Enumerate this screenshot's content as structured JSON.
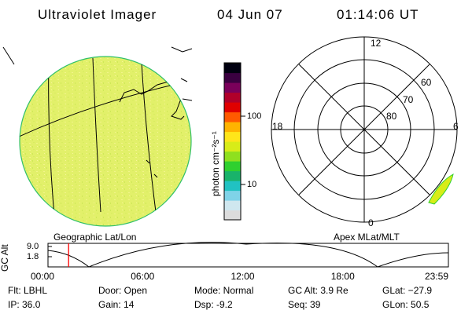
{
  "header": {
    "title": "Ultraviolet Imager",
    "date": "04 Jun 07",
    "time": "01:14:06 UT"
  },
  "colorbar": {
    "unit_label": "photon cm⁻²s⁻¹",
    "tick_100": "100",
    "tick_10": "10",
    "colors": [
      "#dcdcdc",
      "#cfe7ef",
      "#7fd3e8",
      "#21c2c2",
      "#19b36a",
      "#2fd02f",
      "#8fe01f",
      "#d8ec18",
      "#ffe51a",
      "#ffb300",
      "#ff5a00",
      "#e00000",
      "#b0002a",
      "#7a005a",
      "#3a0040",
      "#000010"
    ]
  },
  "left_panel": {
    "caption": "Geographic Lat/Lon",
    "fill_color": "#e2f06a"
  },
  "right_panel": {
    "caption": "Apex MLat/MLT",
    "mlt_12": "12",
    "mlt_18": "18",
    "mlt_6": "6",
    "mlt_0": "0",
    "mlat_60": "60",
    "mlat_70": "70",
    "mlat_80": "80"
  },
  "altitude_plot": {
    "ylabel": "GC Alt",
    "tick_hi": "9.0",
    "tick_lo": "1.8",
    "x_ticks": [
      "00:00",
      "06:00",
      "12:00",
      "18:00",
      "23:59"
    ],
    "marker_time": "01:14",
    "marker_color": "#ff0000"
  },
  "info": {
    "flt": "Flt: LBHL",
    "ip": "IP: 36.0",
    "door": "Door: Open",
    "gain": "Gain: 14",
    "mode": "Mode: Normal",
    "dsp": "Dsp:    -9.2",
    "gcalt": "GC Alt: 3.9 Re",
    "seq": "Seq: 39",
    "glat": "GLat: −27.9",
    "glon": "GLon:  50.5"
  }
}
